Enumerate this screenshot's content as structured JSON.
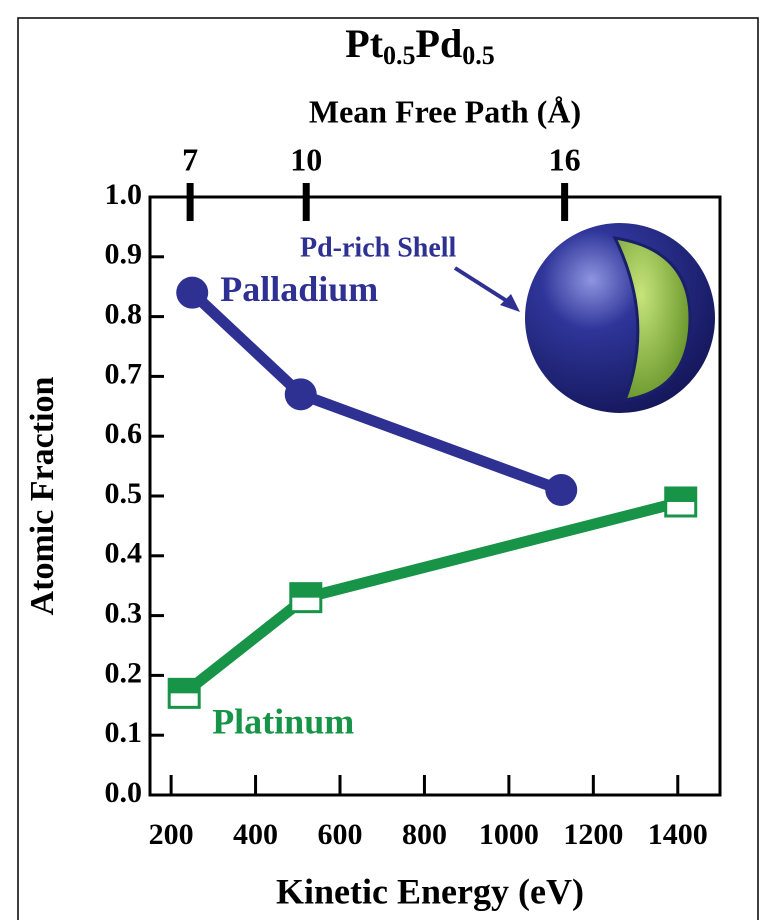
{
  "chart_data": {
    "type": "line",
    "title_parts": [
      "Pt",
      "0.5",
      "Pd",
      "0.5"
    ],
    "x_label": "Kinetic Energy (eV)",
    "x2_label": "Mean Free Path (Å)",
    "y_label": "Atomic Fraction",
    "annotations": [
      "Pd-rich Shell"
    ],
    "xlim": [
      150,
      1500
    ],
    "xticks": [
      200,
      400,
      600,
      800,
      1000,
      1200,
      1400
    ],
    "x2ticks": [
      {
        "value": 245,
        "label": "7"
      },
      {
        "value": 520,
        "label": "10"
      },
      {
        "value": 1132,
        "label": "16"
      }
    ],
    "ylim": [
      0,
      1
    ],
    "yticks": [
      {
        "value": 0,
        "label": "0.0"
      },
      0.1,
      0.2,
      0.3,
      0.4,
      0.5,
      0.6,
      0.7,
      0.8,
      0.9,
      {
        "value": 1,
        "label": "1.0"
      }
    ],
    "series": [
      {
        "name": "Palladium",
        "color": "#2e3192",
        "marker": "circle",
        "x": [
          250,
          507,
          1124
        ],
        "values": [
          0.84,
          0.67,
          0.51
        ]
      },
      {
        "name": "Platinum",
        "color": "#179447",
        "marker": "half-square",
        "x": [
          231,
          519,
          1407
        ],
        "values": [
          0.17,
          0.33,
          0.49
        ]
      }
    ]
  }
}
